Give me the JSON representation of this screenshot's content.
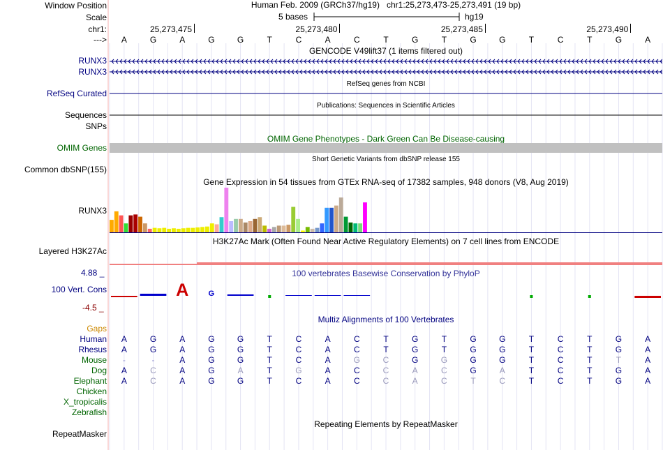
{
  "header": {
    "window_position_label": "Window Position",
    "assembly_info": "Human Feb. 2009 (GRCh37/hg19)",
    "position_info": "chr1:25,273,473-25,273,491 (19 bp)",
    "scale_label": "Scale",
    "scale_text": "5 bases",
    "scale_db": "hg19",
    "chrom_label": "chr1:",
    "strand_label": "--->",
    "ruler_ticks": [
      "25,273,475",
      "25,273,480",
      "25,273,485",
      "25,273,490"
    ],
    "sequence": [
      "A",
      "G",
      "A",
      "G",
      "G",
      "T",
      "C",
      "A",
      "C",
      "T",
      "G",
      "T",
      "G",
      "G",
      "T",
      "C",
      "T",
      "G",
      "A"
    ]
  },
  "tracks": {
    "gencode": {
      "title": "GENCODE V49lift37 (1 items filtered out)",
      "items": [
        "RUNX3",
        "RUNX3"
      ]
    },
    "refseq": {
      "label": "RefSeq Curated",
      "title": "RefSeq genes from NCBI"
    },
    "sequences": {
      "label": "Sequences",
      "title": "Publications: Sequences in Scientific Articles"
    },
    "snps": {
      "label": "SNPs"
    },
    "omim": {
      "label": "OMIM Genes",
      "title": "OMIM Gene Phenotypes - Dark Green Can Be Disease-causing"
    },
    "dbsnp": {
      "label": "Common dbSNP(155)",
      "title": "Short Genetic Variants from dbSNP release 155"
    },
    "gtex": {
      "label": "RUNX3",
      "title": "Gene Expression in 54 tissues from GTEx RNA-seq of 17382 samples, 948 donors (V8, Aug 2019)"
    },
    "h3k27ac": {
      "label": "Layered H3K27Ac",
      "title": "H3K27Ac Mark (Often Found Near Active Regulatory Elements) on 7 cell lines from ENCODE"
    },
    "phylop": {
      "label": "100 Vert. Cons",
      "max": "4.88 _",
      "min": "-4.5 _",
      "title": "100 vertebrates Basewise Conservation by PhyloP"
    },
    "multiz": {
      "title": "Multiz Alignments of 100 Vertebrates",
      "gaps_label": "Gaps",
      "species": [
        {
          "name": "Human",
          "seq": [
            "A",
            "G",
            "A",
            "G",
            "G",
            "T",
            "C",
            "A",
            "C",
            "T",
            "G",
            "T",
            "G",
            "G",
            "T",
            "C",
            "T",
            "G",
            "A"
          ]
        },
        {
          "name": "Rhesus",
          "seq": [
            "A",
            "G",
            "A",
            "G",
            "G",
            "T",
            "C",
            "A",
            "C",
            "T",
            "G",
            "T",
            "G",
            "G",
            "T",
            "C",
            "T",
            "G",
            "A"
          ]
        },
        {
          "name": "Mouse",
          "seq": [
            "-",
            "-",
            "A",
            "G",
            "G",
            "T",
            "C",
            "A",
            "G",
            "C",
            "G",
            "G",
            "G",
            "G",
            "T",
            "C",
            "T",
            "T",
            "A"
          ]
        },
        {
          "name": "Dog",
          "seq": [
            "A",
            "C",
            "A",
            "G",
            "A",
            "T",
            "G",
            "A",
            "C",
            "C",
            "A",
            "C",
            "G",
            "A",
            "T",
            "C",
            "T",
            "G",
            "A"
          ]
        },
        {
          "name": "Elephant",
          "seq": [
            "A",
            "C",
            "A",
            "G",
            "G",
            "T",
            "C",
            "A",
            "C",
            "C",
            "A",
            "C",
            "T",
            "C",
            "T",
            "C",
            "T",
            "G",
            "A"
          ]
        },
        {
          "name": "Chicken",
          "seq": []
        },
        {
          "name": "X_tropicalis",
          "seq": []
        },
        {
          "name": "Zebrafish",
          "seq": []
        }
      ]
    },
    "repeatmasker": {
      "label": "RepeatMasker",
      "title": "Repeating Elements by RepeatMasker"
    }
  },
  "gtex_bars": [
    {
      "v": 0.28,
      "c": "#FFAA00"
    },
    {
      "v": 0.47,
      "c": "#FFAA00"
    },
    {
      "v": 0.38,
      "c": "#FF5555"
    },
    {
      "v": 0.2,
      "c": "#33DD33"
    },
    {
      "v": 0.38,
      "c": "#990000"
    },
    {
      "v": 0.4,
      "c": "#AA0000"
    },
    {
      "v": 0.35,
      "c": "#CC6600"
    },
    {
      "v": 0.2,
      "c": "#CC9966"
    },
    {
      "v": 0.08,
      "c": "#FF6666"
    },
    {
      "v": 0.1,
      "c": "#EEEE00"
    },
    {
      "v": 0.09,
      "c": "#EEEE00"
    },
    {
      "v": 0.1,
      "c": "#EEEE00"
    },
    {
      "v": 0.08,
      "c": "#EEEE00"
    },
    {
      "v": 0.09,
      "c": "#EEEE00"
    },
    {
      "v": 0.08,
      "c": "#EEEE00"
    },
    {
      "v": 0.09,
      "c": "#EEEE00"
    },
    {
      "v": 0.1,
      "c": "#EEEE00"
    },
    {
      "v": 0.1,
      "c": "#EEEE00"
    },
    {
      "v": 0.11,
      "c": "#EEEE00"
    },
    {
      "v": 0.12,
      "c": "#EEEE00"
    },
    {
      "v": 0.13,
      "c": "#EEEE00"
    },
    {
      "v": 0.2,
      "c": "#EEEE00"
    },
    {
      "v": 0.18,
      "c": "#FFAA99"
    },
    {
      "v": 0.34,
      "c": "#33CCCC"
    },
    {
      "v": 1.0,
      "c": "#EE82EE"
    },
    {
      "v": 0.25,
      "c": "#BBBBFF"
    },
    {
      "v": 0.3,
      "c": "#99CCAA"
    },
    {
      "v": 0.3,
      "c": "#CCAA88"
    },
    {
      "v": 0.22,
      "c": "#AA8866"
    },
    {
      "v": 0.25,
      "c": "#DDAA88"
    },
    {
      "v": 0.3,
      "c": "#996633"
    },
    {
      "v": 0.34,
      "c": "#CCAA77"
    },
    {
      "v": 0.15,
      "c": "#BBBB00"
    },
    {
      "v": 0.08,
      "c": "#CC66CC"
    },
    {
      "v": 0.12,
      "c": "#AAAAAA"
    },
    {
      "v": 0.15,
      "c": "#BB9977"
    },
    {
      "v": 0.15,
      "c": "#DDBB99"
    },
    {
      "v": 0.17,
      "c": "#CC9966"
    },
    {
      "v": 0.57,
      "c": "#99CC33"
    },
    {
      "v": 0.3,
      "c": "#AAEE88"
    },
    {
      "v": 0.04,
      "c": "#FFFF00"
    },
    {
      "v": 0.12,
      "c": "#77BB00"
    },
    {
      "v": 0.08,
      "c": "#CCBBAA"
    },
    {
      "v": 0.1,
      "c": "#7799CC"
    },
    {
      "v": 0.2,
      "c": "#3366FF"
    },
    {
      "v": 0.55,
      "c": "#3399FF"
    },
    {
      "v": 0.55,
      "c": "#2255CC"
    },
    {
      "v": 0.6,
      "c": "#CCAA88"
    },
    {
      "v": 0.78,
      "c": "#BBAA99"
    },
    {
      "v": 0.35,
      "c": "#009933"
    },
    {
      "v": 0.22,
      "c": "#006600"
    },
    {
      "v": 0.2,
      "c": "#00BB77"
    },
    {
      "v": 0.2,
      "c": "#77DD77"
    },
    {
      "v": 0.67,
      "c": "#FF00FF"
    }
  ],
  "colors": {
    "navy": "#000080",
    "green": "#006400",
    "orange": "#CC8800",
    "phylop_pos": "#0000CC",
    "phylop_neg": "#CC0000",
    "h3k": "#F08080",
    "omim_bar": "#C0C0C0"
  }
}
